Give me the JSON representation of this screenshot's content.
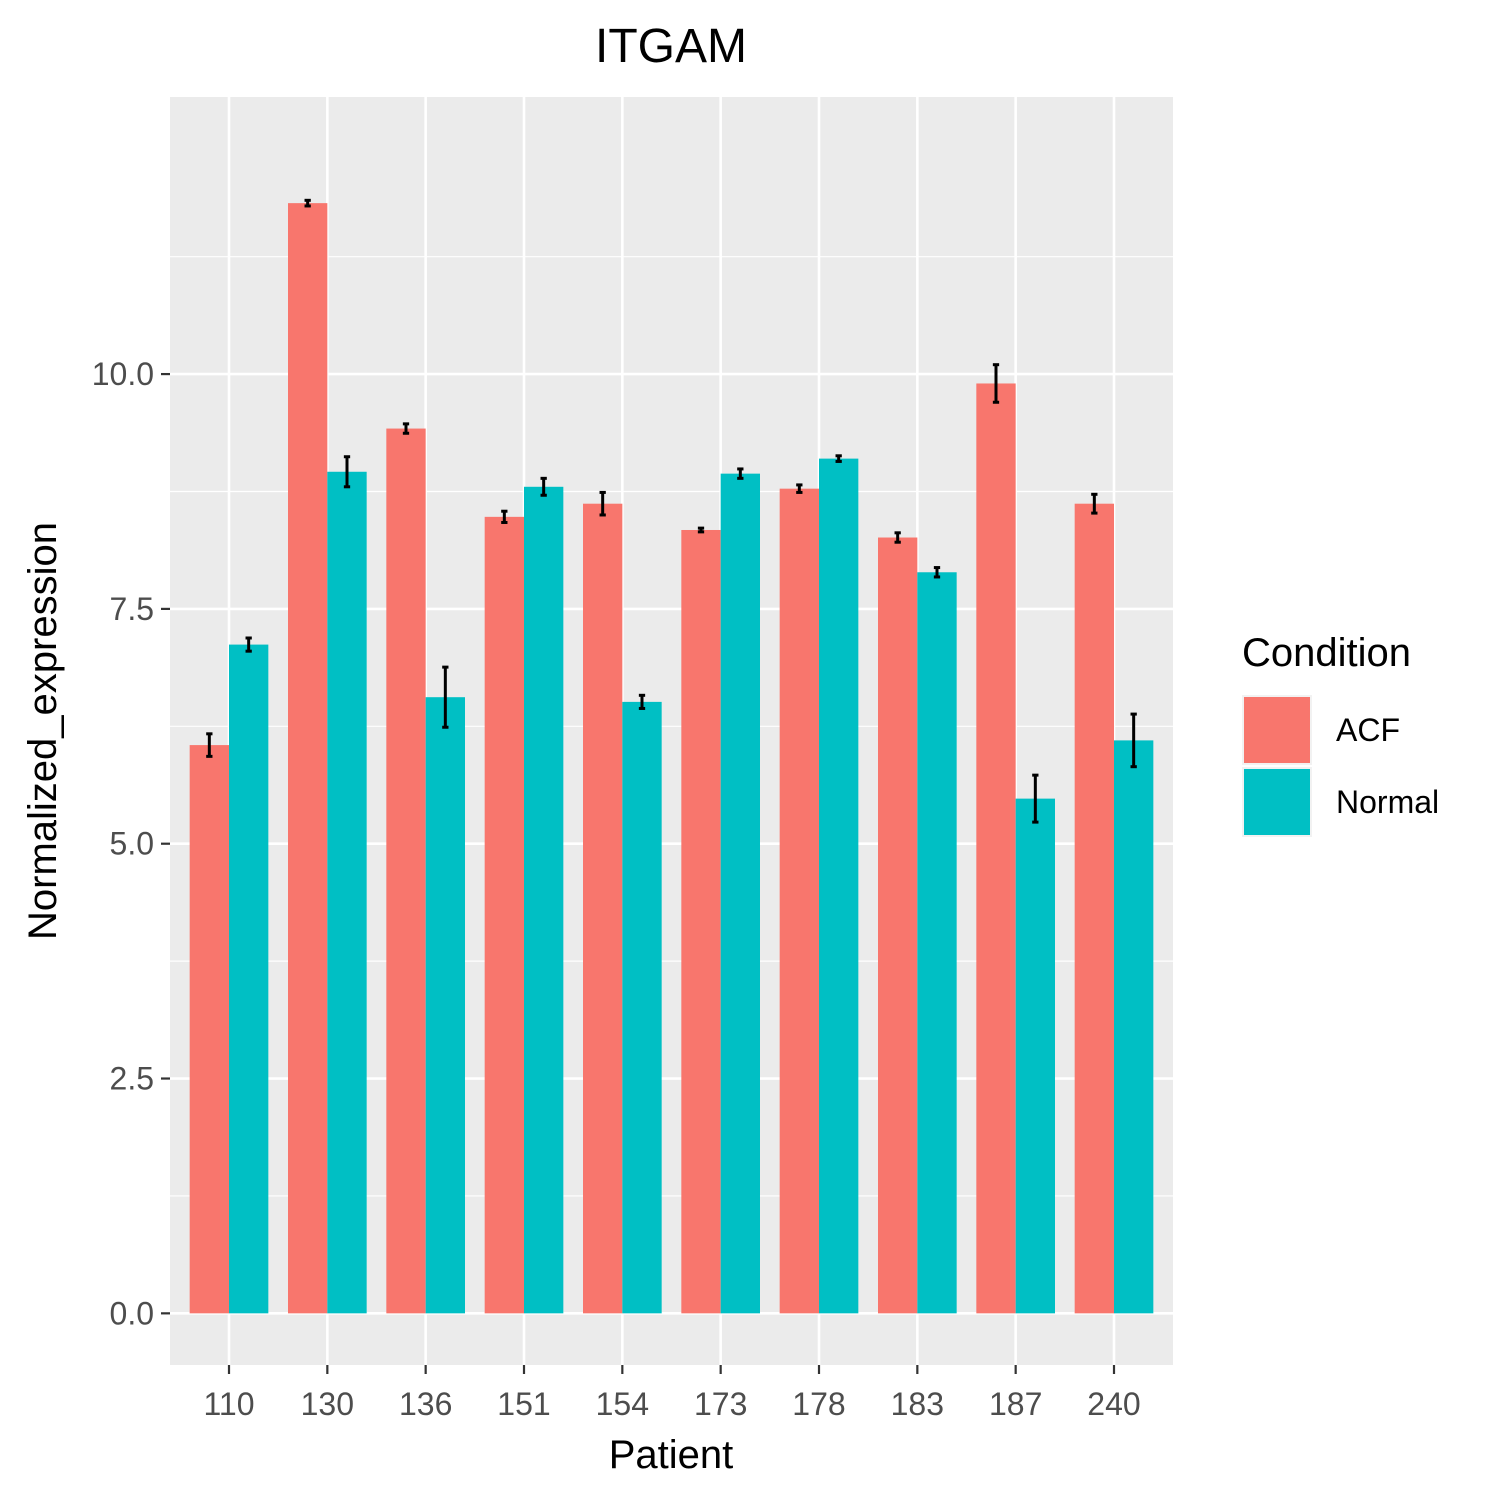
{
  "chart_data": {
    "type": "bar",
    "title": "ITGAM",
    "xlabel": "Patient",
    "ylabel": "Normalized_expression",
    "categories": [
      "110",
      "130",
      "136",
      "151",
      "154",
      "173",
      "178",
      "183",
      "187",
      "240"
    ],
    "series": [
      {
        "name": "ACF",
        "color": "#F8766D",
        "values": [
          6.05,
          11.82,
          9.42,
          8.48,
          8.62,
          8.34,
          8.78,
          8.26,
          9.9,
          8.62
        ],
        "error": [
          0.12,
          0.03,
          0.05,
          0.06,
          0.12,
          0.02,
          0.04,
          0.05,
          0.2,
          0.1
        ]
      },
      {
        "name": "Normal",
        "color": "#00BFC4",
        "values": [
          7.12,
          8.96,
          6.56,
          8.8,
          6.51,
          8.94,
          9.1,
          7.89,
          5.48,
          6.1
        ],
        "error": [
          0.07,
          0.16,
          0.32,
          0.09,
          0.07,
          0.05,
          0.03,
          0.05,
          0.25,
          0.28
        ]
      }
    ],
    "ylim": [
      -0.55,
      12.95
    ],
    "yticks": [
      0.0,
      2.5,
      5.0,
      7.5,
      10.0
    ],
    "ytick_labels": [
      "0.0",
      "2.5",
      "5.0",
      "7.5",
      "10.0"
    ],
    "grid": true,
    "legend": {
      "title": "Condition",
      "position": "right"
    },
    "panel_background": "#EBEBEB"
  }
}
